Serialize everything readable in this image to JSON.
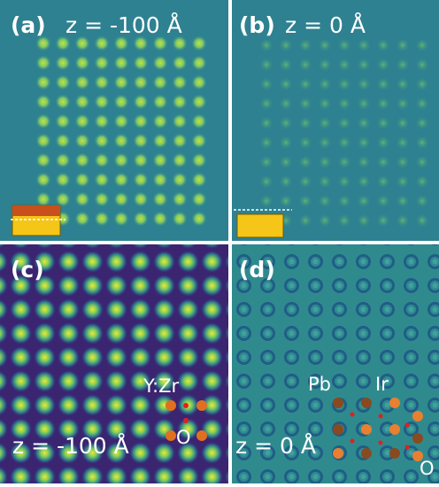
{
  "panels": [
    {
      "label": "(a)",
      "caption": "z = -100 Å"
    },
    {
      "label": "(b)",
      "caption": "z = 0 Å"
    },
    {
      "label": "(c)",
      "caption": "z = -100 Å",
      "annotations": [
        "Y:Zr",
        "O"
      ]
    },
    {
      "label": "(d)",
      "caption": "z = 0 Å",
      "annotations": [
        "Pb",
        "Ir",
        "O"
      ]
    }
  ]
}
